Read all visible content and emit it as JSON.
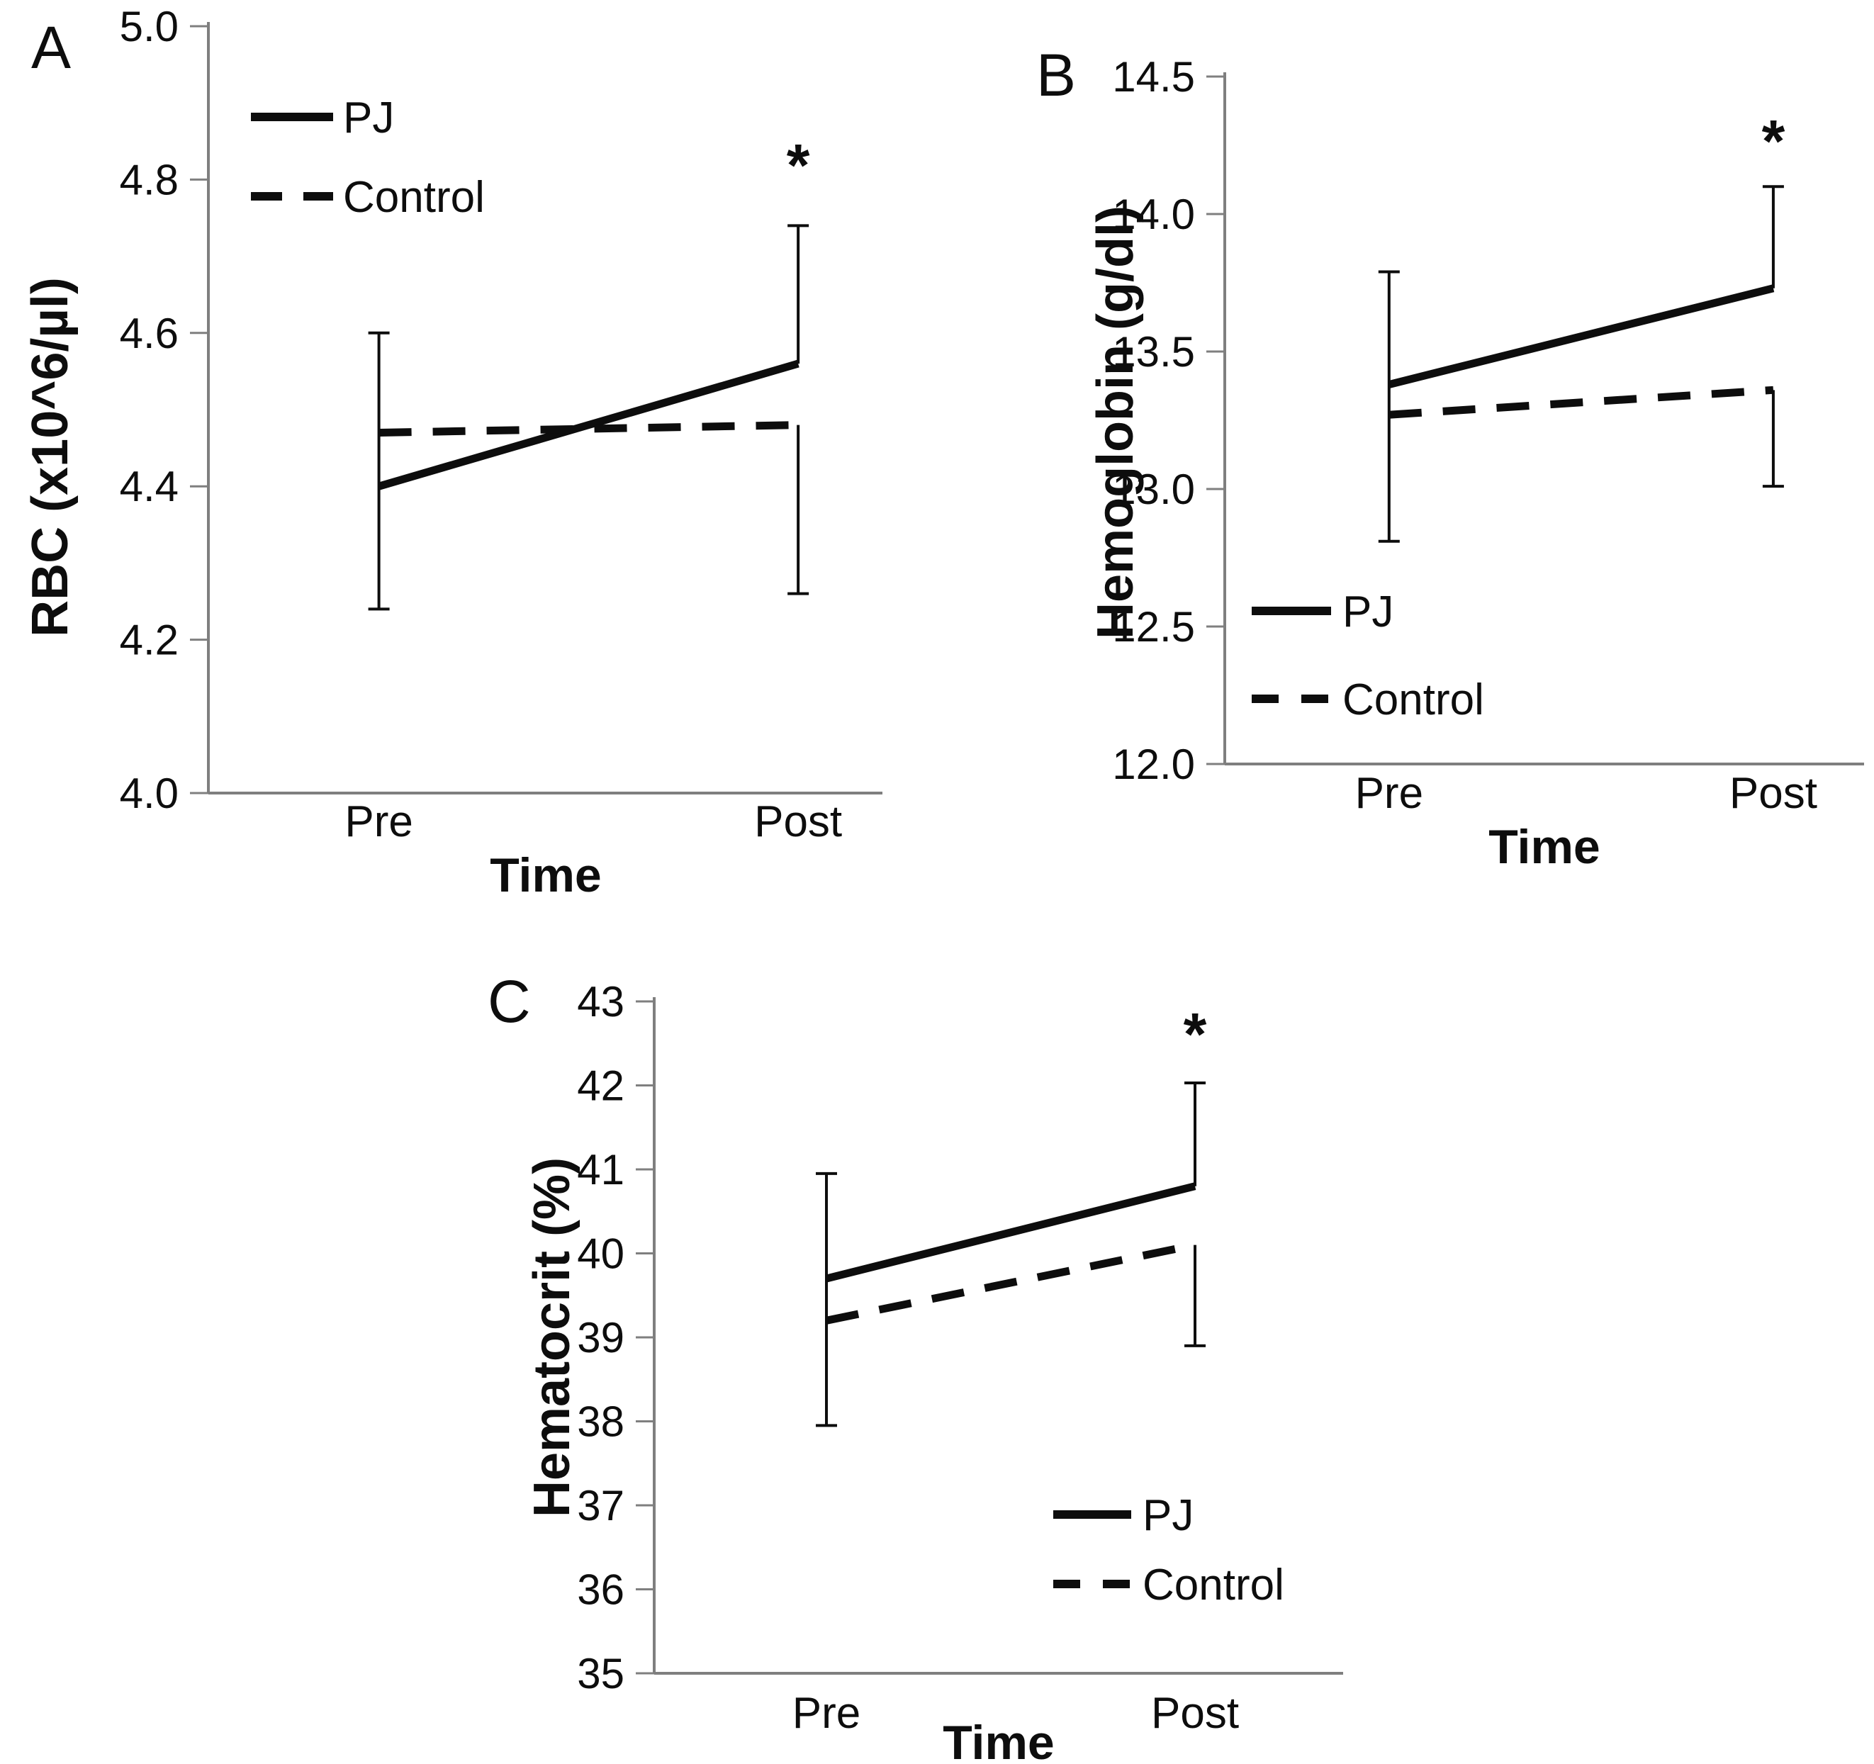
{
  "figure": {
    "background_color": "#ffffff",
    "line_color": "#0d0d0d",
    "axis_color": "#7f7f7f",
    "significance_symbol": "*"
  },
  "chart_data": [
    {
      "panel_label": "A",
      "type": "line",
      "title": "",
      "ylabel": "RBC (x10^6/µl)",
      "xlabel": "Time",
      "categories": [
        "Pre",
        "Post"
      ],
      "ylim": [
        4.0,
        5.0
      ],
      "grid": false,
      "legend_position": "top-left",
      "yticks": [
        {
          "value": 4.0,
          "label": "4.0"
        },
        {
          "value": 4.2,
          "label": "4.2"
        },
        {
          "value": 4.4,
          "label": "4.4"
        },
        {
          "value": 4.6,
          "label": "4.6"
        },
        {
          "value": 4.8,
          "label": "4.8"
        },
        {
          "value": 5.0,
          "label": "5.0"
        }
      ],
      "series": [
        {
          "name": "PJ",
          "style": "solid",
          "values": [
            4.4,
            4.56
          ]
        },
        {
          "name": "Control",
          "style": "dashed",
          "values": [
            4.47,
            4.48
          ]
        }
      ],
      "error_bars": [
        {
          "category": "Pre",
          "low": 4.24,
          "high": 4.6,
          "caps": [
            "top",
            "bottom"
          ]
        },
        {
          "category": "Post",
          "series": "PJ",
          "low": 4.56,
          "high": 4.74,
          "caps": [
            "top"
          ]
        },
        {
          "category": "Post",
          "series": "Control",
          "low": 4.26,
          "high": 4.48,
          "caps": [
            "bottom"
          ]
        }
      ],
      "annotations": [
        {
          "category": "Post",
          "text": "*"
        }
      ]
    },
    {
      "panel_label": "B",
      "type": "line",
      "title": "",
      "ylabel": "Hemoglobin (g/dl)",
      "xlabel": "Time",
      "categories": [
        "Pre",
        "Post"
      ],
      "ylim": [
        12.0,
        14.5
      ],
      "grid": false,
      "legend_position": "bottom-left",
      "yticks": [
        {
          "value": 12.0,
          "label": "12.0"
        },
        {
          "value": 12.5,
          "label": "12.5"
        },
        {
          "value": 13.0,
          "label": "13.0"
        },
        {
          "value": 13.5,
          "label": "13.5"
        },
        {
          "value": 14.0,
          "label": "14.0"
        },
        {
          "value": 14.5,
          "label": "14.5"
        }
      ],
      "series": [
        {
          "name": "PJ",
          "style": "solid",
          "values": [
            13.38,
            13.73
          ]
        },
        {
          "name": "Control",
          "style": "dashed",
          "values": [
            13.27,
            13.36
          ]
        }
      ],
      "error_bars": [
        {
          "category": "Pre",
          "low": 12.81,
          "high": 13.79,
          "caps": [
            "top",
            "bottom"
          ]
        },
        {
          "category": "Post",
          "series": "PJ",
          "low": 13.73,
          "high": 14.1,
          "caps": [
            "top"
          ]
        },
        {
          "category": "Post",
          "series": "Control",
          "low": 13.01,
          "high": 13.36,
          "caps": [
            "bottom"
          ]
        }
      ],
      "annotations": [
        {
          "category": "Post",
          "text": "*"
        }
      ]
    },
    {
      "panel_label": "C",
      "type": "line",
      "title": "",
      "ylabel": "Hematocrit (%)",
      "xlabel": "Time",
      "categories": [
        "Pre",
        "Post"
      ],
      "ylim": [
        35,
        43
      ],
      "grid": false,
      "legend_position": "bottom-right",
      "yticks": [
        {
          "value": 35,
          "label": "35"
        },
        {
          "value": 36,
          "label": "36"
        },
        {
          "value": 37,
          "label": "37"
        },
        {
          "value": 38,
          "label": "38"
        },
        {
          "value": 39,
          "label": "39"
        },
        {
          "value": 40,
          "label": "40"
        },
        {
          "value": 41,
          "label": "41"
        },
        {
          "value": 42,
          "label": "42"
        },
        {
          "value": 43,
          "label": "43"
        }
      ],
      "series": [
        {
          "name": "PJ",
          "style": "solid",
          "values": [
            39.7,
            40.8
          ]
        },
        {
          "name": "Control",
          "style": "dashed",
          "values": [
            39.2,
            40.1
          ]
        }
      ],
      "error_bars": [
        {
          "category": "Pre",
          "low": 37.95,
          "high": 40.95,
          "caps": [
            "top",
            "bottom"
          ]
        },
        {
          "category": "Post",
          "series": "PJ",
          "low": 40.8,
          "high": 42.03,
          "caps": [
            "top"
          ]
        },
        {
          "category": "Post",
          "series": "Control",
          "low": 38.9,
          "high": 40.1,
          "caps": [
            "bottom"
          ]
        }
      ],
      "annotations": [
        {
          "category": "Post",
          "text": "*"
        }
      ]
    }
  ]
}
